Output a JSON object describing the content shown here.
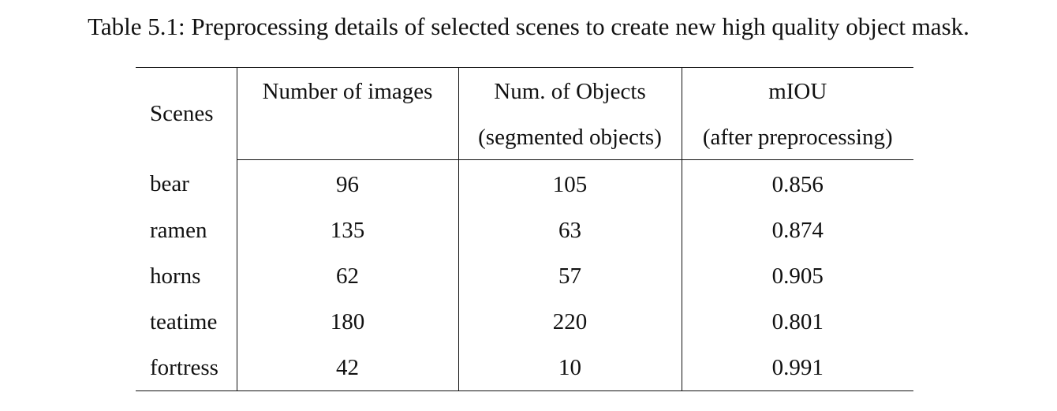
{
  "caption": "Table 5.1: Preprocessing details of selected scenes to create new high quality object mask.",
  "table": {
    "headers": {
      "scenes": "Scenes",
      "num_images": "Number of images",
      "num_objects": "Num. of Objects",
      "num_objects_sub": "(segmented objects)",
      "miou": "mIOU",
      "miou_sub": "(after preprocessing)"
    },
    "rows": [
      {
        "scene": "bear",
        "images": "96",
        "objects": "105",
        "miou": "0.856"
      },
      {
        "scene": "ramen",
        "images": "135",
        "objects": "63",
        "miou": "0.874"
      },
      {
        "scene": "horns",
        "images": "62",
        "objects": "57",
        "miou": "0.905"
      },
      {
        "scene": "teatime",
        "images": "180",
        "objects": "220",
        "miou": "0.801"
      },
      {
        "scene": "fortress",
        "images": "42",
        "objects": "10",
        "miou": "0.991"
      }
    ]
  }
}
